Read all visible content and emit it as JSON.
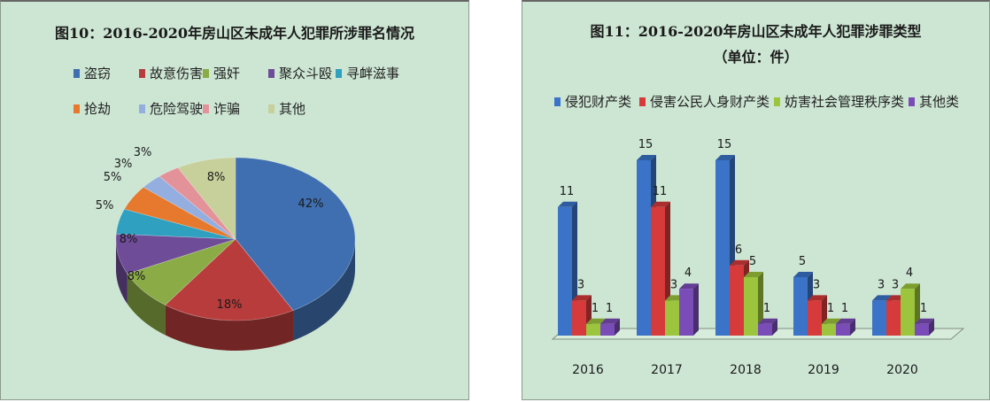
{
  "chart_data": [
    {
      "type": "pie",
      "title": "图10：2016-2020年房山区未成年人犯罪所涉罪名情况",
      "categories": [
        "盗窃",
        "故意伤害",
        "强奸",
        "聚众斗殴",
        "寻衅滋事",
        "抢劫",
        "危险驾驶",
        "诈骗",
        "其他"
      ],
      "values": [
        42,
        18,
        8,
        8,
        5,
        5,
        3,
        3,
        8
      ],
      "value_labels": [
        "42%",
        "18%",
        "8%",
        "8%",
        "5%",
        "5%",
        "3%",
        "3%",
        "8%"
      ],
      "colors": [
        "#3f6fb0",
        "#b83c3c",
        "#8aab46",
        "#6e4c98",
        "#2fa0c0",
        "#e6792e",
        "#94aee0",
        "#e4929a",
        "#c7cf9a"
      ],
      "legend_position": "top",
      "style": "3d"
    },
    {
      "type": "bar",
      "title": "图11：2016-2020年房山区未成年人犯罪涉罪类型",
      "subtitle": "（单位：件）",
      "categories": [
        "2016",
        "2017",
        "2018",
        "2019",
        "2020"
      ],
      "series": [
        {
          "name": "侵犯财产类",
          "color": "#3a73c8",
          "values": [
            11,
            15,
            15,
            5,
            3
          ]
        },
        {
          "name": "侵害公民人身财产类",
          "color": "#d63a3a",
          "values": [
            3,
            11,
            6,
            3,
            3
          ]
        },
        {
          "name": "妨害社会管理秩序类",
          "color": "#9cc43c",
          "values": [
            1,
            3,
            5,
            1,
            4
          ]
        },
        {
          "name": "其他类",
          "color": "#7a4cb8",
          "values": [
            1,
            4,
            1,
            1,
            1
          ]
        }
      ],
      "xlabel": "",
      "ylabel": "",
      "ylim": [
        0,
        16
      ],
      "grid": false,
      "legend_position": "top",
      "style": "3d"
    }
  ],
  "left": {
    "title": "图10：2016-2020年房山区未成年人犯罪所涉罪名情况",
    "legend": [
      {
        "label": "盗窃",
        "color": "#3f6fb0"
      },
      {
        "label": "故意伤害",
        "color": "#b83c3c"
      },
      {
        "label": "强奸",
        "color": "#8aab46"
      },
      {
        "label": "聚众斗殴",
        "color": "#6e4c98"
      },
      {
        "label": "寻衅滋事",
        "color": "#2fa0c0"
      },
      {
        "label": "抢劫",
        "color": "#e6792e"
      },
      {
        "label": "危险驾驶",
        "color": "#94aee0"
      },
      {
        "label": "诈骗",
        "color": "#e4929a"
      },
      {
        "label": "其他",
        "color": "#c7cf9a"
      }
    ],
    "labels": [
      "42%",
      "18%",
      "8%",
      "8%",
      "5%",
      "5%",
      "3%",
      "3%",
      "8%"
    ]
  },
  "right": {
    "title": "图11：2016-2020年房山区未成年人犯罪涉罪类型",
    "subtitle": "（单位：件）",
    "legend": [
      {
        "label": "侵犯财产类",
        "color": "#3a73c8"
      },
      {
        "label": "侵害公民人身财产类",
        "color": "#d63a3a"
      },
      {
        "label": "妨害社会管理秩序类",
        "color": "#9cc43c"
      },
      {
        "label": "其他类",
        "color": "#7a4cb8"
      }
    ],
    "years": [
      "2016",
      "2017",
      "2018",
      "2019",
      "2020"
    ]
  }
}
